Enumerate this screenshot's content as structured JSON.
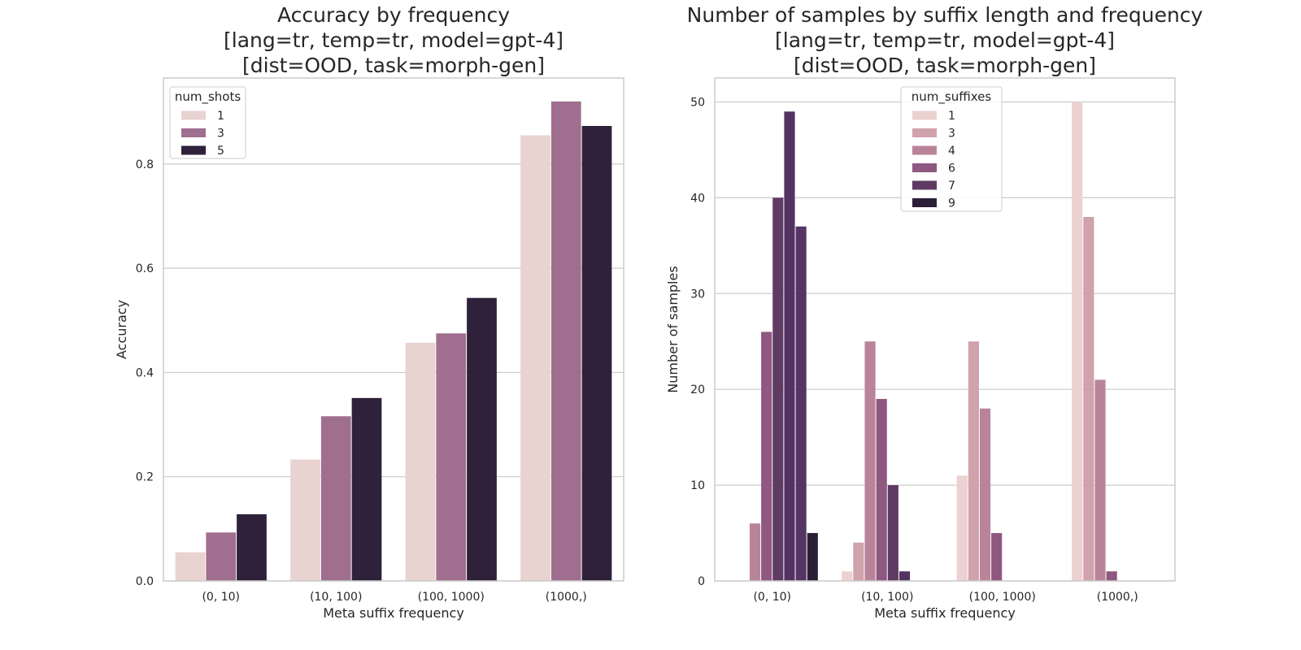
{
  "chart_data": [
    {
      "type": "bar",
      "title": [
        "Accuracy by frequency",
        "[lang=tr, temp=tr, model=gpt-4]",
        "[dist=OOD, task=morph-gen]"
      ],
      "xlabel": "Meta suffix frequency",
      "ylabel": "Accuracy",
      "categories": [
        "(0, 10)",
        "(10, 100)",
        "(100, 1000)",
        "(1000,)"
      ],
      "ylim": [
        0,
        0.965
      ],
      "yticks": [
        0.0,
        0.2,
        0.4,
        0.6,
        0.8
      ],
      "ytick_labels": [
        "0.0",
        "0.2",
        "0.4",
        "0.6",
        "0.8"
      ],
      "grid": "horizontal",
      "legend": {
        "title": "num_shots",
        "placement": "upper-left"
      },
      "series": [
        {
          "name": "1",
          "color": "#e8d3d0",
          "values": [
            0.055,
            0.233,
            0.457,
            0.855
          ]
        },
        {
          "name": "3",
          "color": "#a06e8e",
          "values": [
            0.093,
            0.316,
            0.475,
            0.92
          ]
        },
        {
          "name": "5",
          "color": "#2e2139",
          "values": [
            0.128,
            0.351,
            0.543,
            0.873
          ]
        }
      ]
    },
    {
      "type": "bar",
      "title": [
        "Number of samples by suffix length and frequency",
        "[lang=tr, temp=tr, model=gpt-4]",
        "[dist=OOD, task=morph-gen]"
      ],
      "xlabel": "Meta suffix frequency",
      "ylabel": "Number of samples",
      "categories": [
        "(0, 10)",
        "(10, 100)",
        "(100, 1000)",
        "(1000,)"
      ],
      "ylim": [
        0,
        52.5
      ],
      "yticks": [
        0,
        10,
        20,
        30,
        40,
        50
      ],
      "ytick_labels": [
        "0",
        "10",
        "20",
        "30",
        "40",
        "50"
      ],
      "grid": "horizontal",
      "legend": {
        "title": "num_suffixes",
        "placement": "upper-center"
      },
      "series": [
        {
          "name": "1",
          "color": "#ebd2d1",
          "values": [
            0,
            1,
            11,
            50
          ]
        },
        {
          "name": "3",
          "color": "#d0a2ac",
          "values": [
            0,
            4,
            25,
            38
          ]
        },
        {
          "name": "4",
          "color": "#b9849a",
          "values": [
            6,
            25,
            18,
            21
          ]
        },
        {
          "name": "6",
          "color": "#8e5880",
          "values": [
            26,
            19,
            5,
            1
          ]
        },
        {
          "name": "7",
          "color": "#5f3a63",
          "values": [
            40,
            10,
            0,
            0
          ]
        },
        {
          "name": "",
          "color": "#543362",
          "values": [
            49,
            1,
            0,
            0
          ]
        },
        {
          "name": "",
          "color": "#553565",
          "values": [
            37,
            0,
            0,
            0
          ]
        },
        {
          "name": "9",
          "color": "#2d1e37",
          "values": [
            5,
            0,
            0,
            0
          ]
        }
      ]
    }
  ]
}
